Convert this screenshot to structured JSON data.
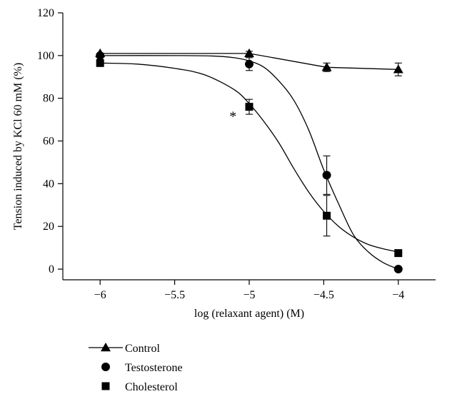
{
  "chart_data": {
    "type": "scatter",
    "xlabel": "log (relaxant agent) (M)",
    "ylabel": "Tension induced by KCl 60 mM (%)",
    "xlim": [
      -6.25,
      -3.75
    ],
    "ylim": [
      -5,
      120
    ],
    "xticks": [
      -6,
      -5.5,
      -5,
      -4.5,
      -4
    ],
    "xtick_labels": [
      "−6",
      "−5.5",
      "−5",
      "−4.5",
      "−4"
    ],
    "yticks": [
      0,
      20,
      40,
      60,
      80,
      100,
      120
    ],
    "ytick_labels": [
      "0",
      "20",
      "40",
      "60",
      "80",
      "100",
      "120"
    ],
    "grid": false,
    "legend_position": "bottom-left",
    "series": [
      {
        "name": "Control",
        "marker": "triangle",
        "connected": "line",
        "x": [
          -6,
          -5,
          -4.48,
          -4
        ],
        "y": [
          101,
          101,
          94.5,
          93.5
        ],
        "err": [
          0,
          1,
          2,
          3
        ],
        "curve_x": [
          -6,
          -5,
          -4.48,
          -4
        ],
        "curve_y": [
          101,
          101,
          94.5,
          93.5
        ]
      },
      {
        "name": "Testosterone",
        "marker": "circle",
        "connected": "sigmoid",
        "x": [
          -6,
          -5,
          -4.48,
          -4
        ],
        "y": [
          100,
          96,
          44,
          0
        ],
        "err": [
          0,
          3,
          9,
          0
        ],
        "curve_x": [
          -6,
          -5.5,
          -5.25,
          -5.1,
          -5,
          -4.9,
          -4.8,
          -4.7,
          -4.6,
          -4.5,
          -4.4,
          -4.3,
          -4.2,
          -4.1,
          -4
        ],
        "curve_y": [
          100.0,
          100.0,
          99.8,
          99.0,
          97.5,
          94.5,
          88.0,
          79.0,
          65.0,
          46.5,
          30.5,
          16.0,
          8.0,
          3.0,
          0.0
        ]
      },
      {
        "name": "Cholesterol",
        "marker": "square",
        "connected": "sigmoid",
        "x": [
          -6,
          -5,
          -4.48,
          -4
        ],
        "y": [
          96.5,
          76,
          25,
          7.5
        ],
        "err": [
          0,
          3.5,
          9.5,
          0
        ],
        "curve_x": [
          -6,
          -5.75,
          -5.5,
          -5.3,
          -5.1,
          -5,
          -4.9,
          -4.8,
          -4.7,
          -4.6,
          -4.5,
          -4.4,
          -4.3,
          -4.2,
          -4.1,
          -4
        ],
        "curve_y": [
          96.5,
          96.0,
          94.0,
          91.0,
          84.0,
          77.5,
          69.0,
          59.0,
          47.0,
          36.0,
          27.0,
          20.0,
          15.0,
          11.5,
          9.5,
          8.0
        ]
      }
    ],
    "annotations": [
      {
        "text": "*",
        "x": -5.08,
        "y": 74
      }
    ]
  }
}
